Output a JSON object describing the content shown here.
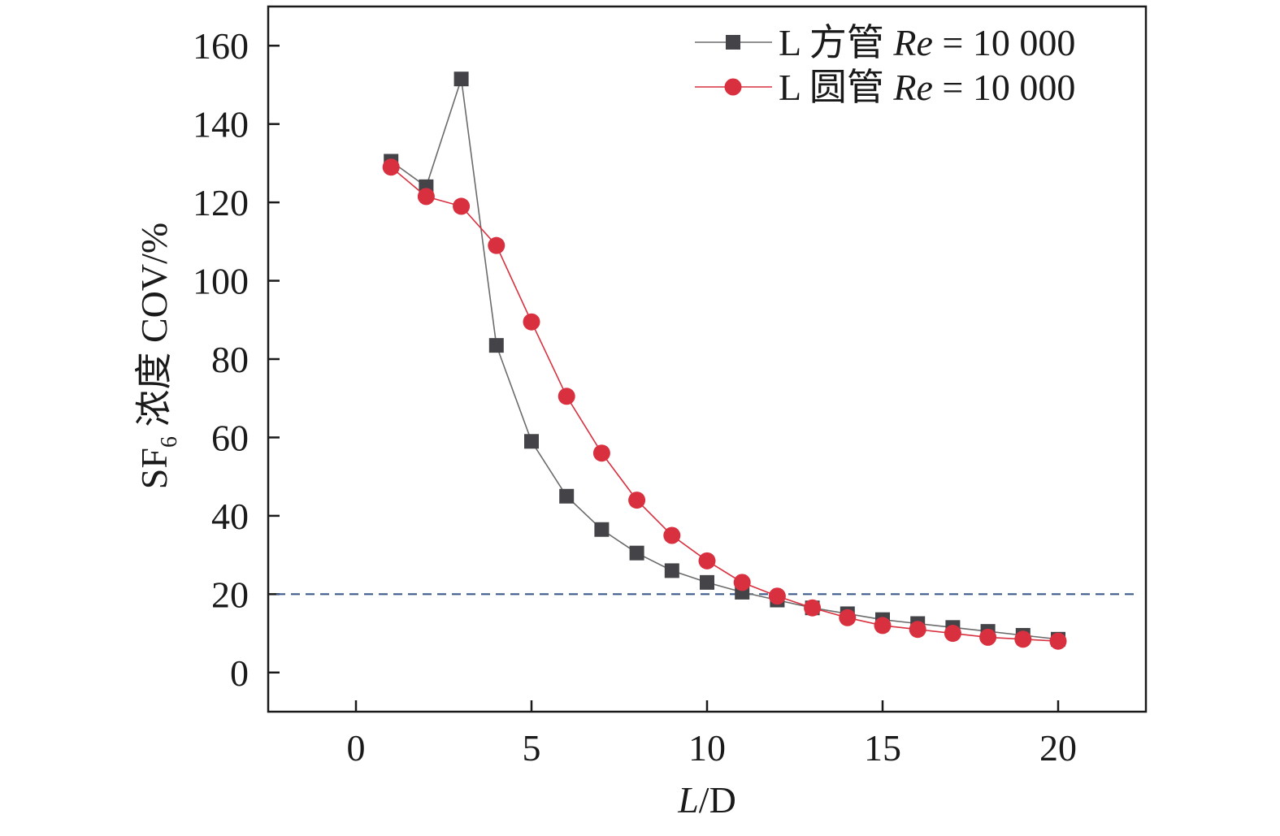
{
  "chart_data": {
    "type": "line",
    "xlabel": "L/D",
    "xlabel_parts": {
      "italic": "L",
      "rest": "/D"
    },
    "ylabel": "SF6 浓度 COV/%",
    "ylabel_parts": {
      "pre": "SF",
      "sub": "6",
      "post": " 浓度 COV/%"
    },
    "xlim": [
      -2.5,
      22.5
    ],
    "ylim": [
      -10,
      170
    ],
    "xticks": [
      0,
      5,
      10,
      15,
      20
    ],
    "yticks": [
      0,
      20,
      40,
      60,
      80,
      100,
      120,
      140,
      160
    ],
    "grid": false,
    "legend_position": "top-right",
    "reference_line": {
      "y": 20,
      "style": "dashed",
      "color": "#3d5a8a"
    },
    "series": [
      {
        "name": "L 方管 Re = 10 000",
        "name_parts": {
          "pre": "L 方管 ",
          "italic": "Re",
          "post": " = 10 000"
        },
        "marker": "square",
        "color": "#444448",
        "line_color": "#6b6b6b",
        "x": [
          1,
          2,
          3,
          4,
          5,
          6,
          7,
          8,
          9,
          10,
          11,
          12,
          13,
          14,
          15,
          16,
          17,
          18,
          19,
          20
        ],
        "y": [
          130.5,
          124,
          151.5,
          83.5,
          59,
          45,
          36.5,
          30.5,
          26,
          23,
          20.5,
          18.5,
          16.5,
          15,
          13.5,
          12.5,
          11.5,
          10.5,
          9.5,
          8.5
        ]
      },
      {
        "name": "L 圆管 Re = 10 000",
        "name_parts": {
          "pre": "L 圆管 ",
          "italic": "Re",
          "post": " = 10 000"
        },
        "marker": "circle",
        "color": "#d9303f",
        "line_color": "#d9303f",
        "x": [
          1,
          2,
          3,
          4,
          5,
          6,
          7,
          8,
          9,
          10,
          11,
          12,
          13,
          14,
          15,
          16,
          17,
          18,
          19,
          20
        ],
        "y": [
          129,
          121.5,
          119,
          109,
          89.5,
          70.5,
          56,
          44,
          35,
          28.5,
          23,
          19.5,
          16.5,
          14,
          12,
          11,
          10,
          9,
          8.5,
          8
        ]
      }
    ]
  }
}
